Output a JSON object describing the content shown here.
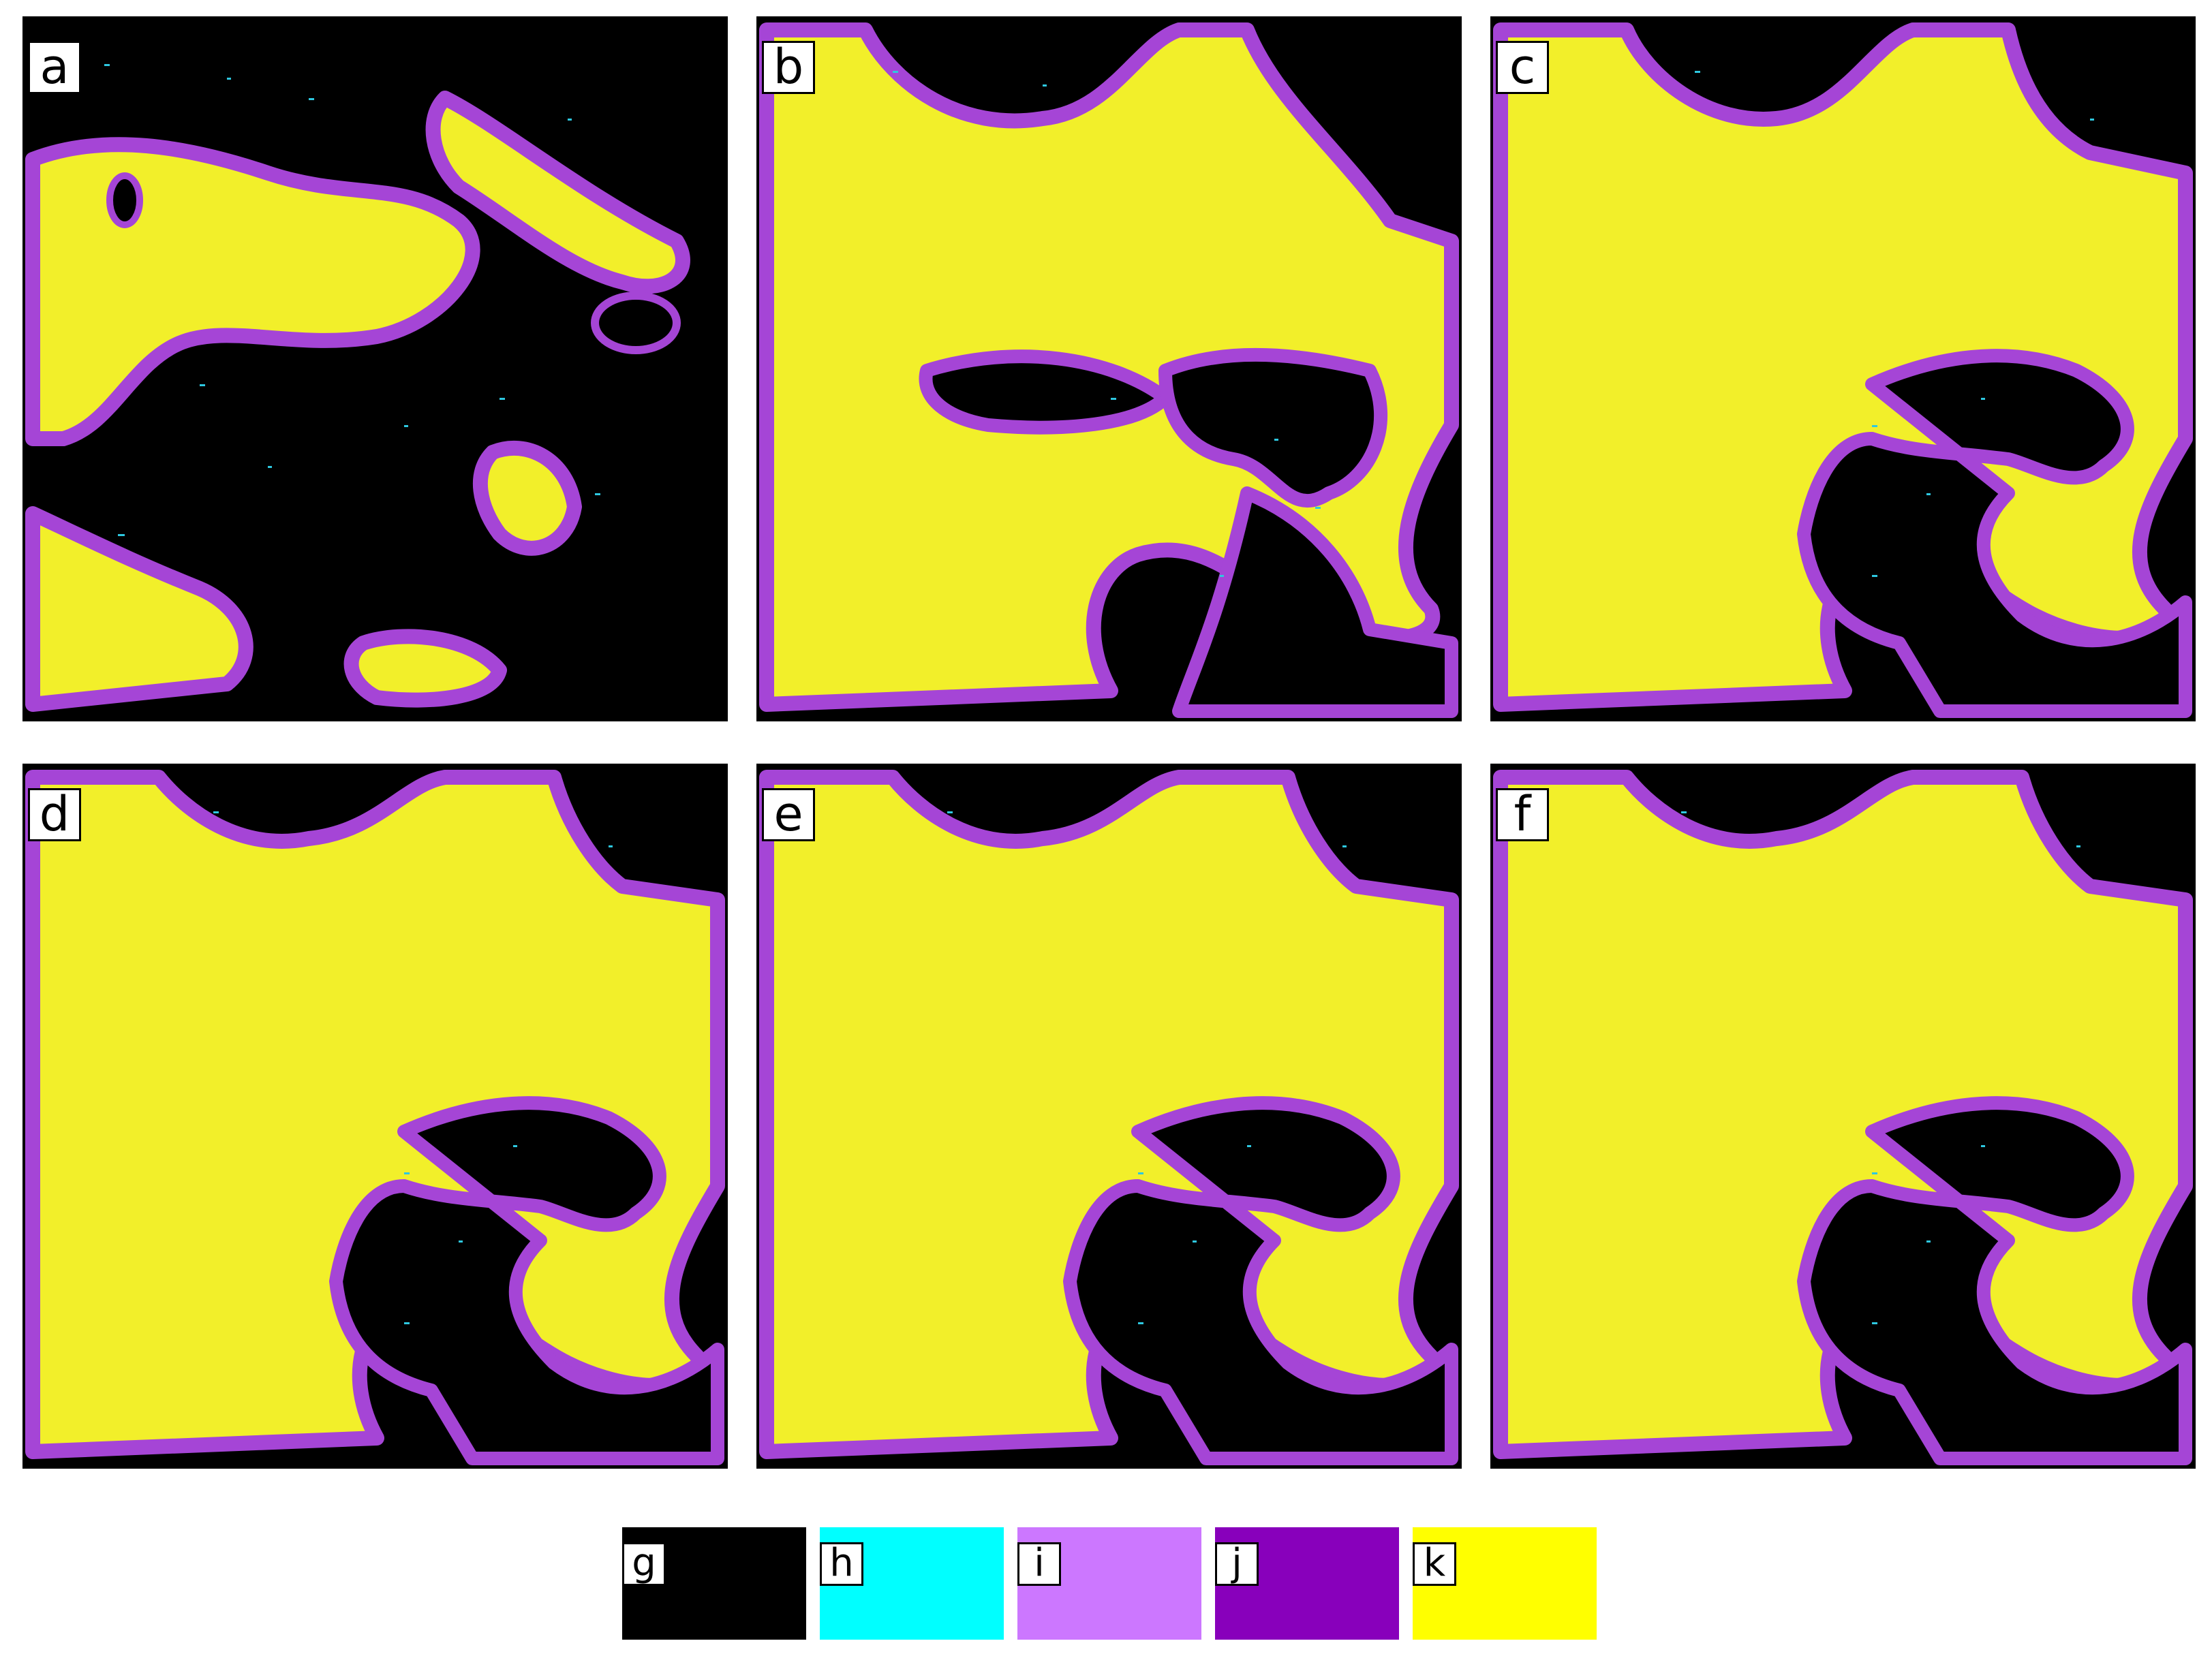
{
  "panels": [
    {
      "label": "a"
    },
    {
      "label": "b"
    },
    {
      "label": "c"
    },
    {
      "label": "d"
    },
    {
      "label": "e"
    },
    {
      "label": "f"
    }
  ],
  "legend": [
    {
      "label": "g",
      "color": "#000000"
    },
    {
      "label": "h",
      "color": "#00ffff"
    },
    {
      "label": "i",
      "color": "#cc77ff"
    },
    {
      "label": "j",
      "color": "#8800bb"
    },
    {
      "label": "k",
      "color": "#ffff00"
    }
  ],
  "map_colors": {
    "background": "#000000",
    "land": "#f2ef2a",
    "edge": "#a545d6",
    "detail": "#2ec8e0"
  }
}
